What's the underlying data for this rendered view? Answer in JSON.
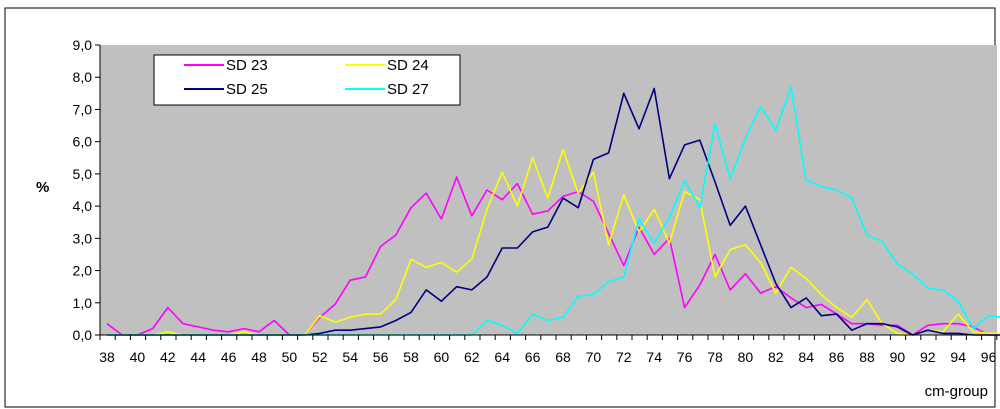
{
  "chart_data": {
    "type": "line",
    "title": "",
    "xlabel": "cm-group",
    "ylabel": "%",
    "xlim": [
      38,
      97
    ],
    "ylim": [
      0,
      9
    ],
    "y_ticks": [
      "0,0",
      "1,0",
      "2,0",
      "3,0",
      "4,0",
      "5,0",
      "6,0",
      "7,0",
      "8,0",
      "9,0"
    ],
    "x_ticks": [
      "38",
      "40",
      "42",
      "44",
      "46",
      "48",
      "50",
      "52",
      "54",
      "56",
      "58",
      "60",
      "62",
      "64",
      "66",
      "68",
      "70",
      "72",
      "74",
      "76",
      "78",
      "80",
      "82",
      "84",
      "86",
      "88",
      "90",
      "92",
      "94",
      "96"
    ],
    "grid": false,
    "plot_background": "#c0c0c0",
    "legend_position": "top-left inside plot",
    "x": [
      38,
      39,
      40,
      41,
      42,
      43,
      44,
      45,
      46,
      47,
      48,
      49,
      50,
      51,
      52,
      53,
      54,
      55,
      56,
      57,
      58,
      59,
      60,
      61,
      62,
      63,
      64,
      65,
      66,
      67,
      68,
      69,
      70,
      71,
      72,
      73,
      74,
      75,
      76,
      77,
      78,
      79,
      80,
      81,
      82,
      83,
      84,
      85,
      86,
      87,
      88,
      89,
      90,
      91,
      92,
      93,
      94,
      95,
      96,
      97
    ],
    "series": [
      {
        "name": "SD 23",
        "color": "#ff00ff",
        "values": [
          0.35,
          0,
          0,
          0.2,
          0.85,
          0.35,
          0.25,
          0.15,
          0.1,
          0.2,
          0.1,
          0.45,
          0,
          0,
          0.55,
          0.95,
          1.7,
          1.8,
          2.75,
          3.1,
          3.95,
          4.4,
          3.6,
          4.9,
          3.7,
          4.5,
          4.2,
          4.7,
          3.75,
          3.85,
          4.3,
          4.45,
          4.15,
          3.15,
          2.15,
          3.35,
          2.5,
          3.0,
          0.85,
          1.55,
          2.5,
          1.4,
          1.9,
          1.3,
          1.5,
          1.15,
          0.85,
          0.95,
          0.65,
          0.35,
          0.35,
          0.3,
          0.3,
          0,
          0.3,
          0.35,
          0.35,
          0.25,
          0,
          0
        ]
      },
      {
        "name": "SD 24",
        "color": "#ffff00",
        "values": [
          0,
          0,
          0,
          0,
          0.1,
          0,
          0,
          0,
          0,
          0.1,
          0,
          0,
          0,
          0,
          0.6,
          0.4,
          0.55,
          0.65,
          0.65,
          1.1,
          2.35,
          2.1,
          2.25,
          1.95,
          2.35,
          3.9,
          5.05,
          4.0,
          5.5,
          4.25,
          5.75,
          4.4,
          5.05,
          2.8,
          4.35,
          3.2,
          3.9,
          2.85,
          4.45,
          4.2,
          1.8,
          2.65,
          2.8,
          2.25,
          1.3,
          2.1,
          1.75,
          1.25,
          0.85,
          0.55,
          1.1,
          0.35,
          0.05,
          0,
          0.15,
          0.1,
          0.65,
          0.1,
          0.05,
          0.05
        ]
      },
      {
        "name": "SD 25",
        "color": "#000080",
        "values": [
          0,
          0,
          0,
          0,
          0,
          0,
          0,
          0,
          0,
          0,
          0,
          0,
          0,
          0,
          0.05,
          0.15,
          0.15,
          0.2,
          0.25,
          0.45,
          0.7,
          1.4,
          1.05,
          1.5,
          1.4,
          1.8,
          2.7,
          2.7,
          3.2,
          3.35,
          4.25,
          3.95,
          5.45,
          5.65,
          7.5,
          6.4,
          7.65,
          4.85,
          5.9,
          6.05,
          4.75,
          3.4,
          4.0,
          2.8,
          1.6,
          0.85,
          1.15,
          0.6,
          0.65,
          0.15,
          0.35,
          0.35,
          0.25,
          0,
          0.15,
          0.05,
          0.05,
          0,
          0,
          0
        ]
      },
      {
        "name": "SD 27",
        "color": "#00ffff",
        "values": [
          0,
          0,
          0,
          0,
          0,
          0,
          0,
          0,
          0,
          0,
          0,
          0,
          0,
          0,
          0,
          0,
          0,
          0,
          0,
          0,
          0,
          0,
          0,
          0,
          0,
          0.45,
          0.3,
          0.05,
          0.65,
          0.45,
          0.55,
          1.2,
          1.25,
          1.65,
          1.8,
          3.6,
          2.85,
          3.65,
          4.8,
          3.95,
          6.55,
          4.85,
          6.1,
          7.1,
          6.35,
          7.7,
          4.8,
          4.6,
          4.5,
          4.25,
          3.1,
          2.9,
          2.2,
          1.9,
          1.45,
          1.4,
          1.05,
          0.2,
          0.6,
          0.55
        ]
      }
    ]
  }
}
